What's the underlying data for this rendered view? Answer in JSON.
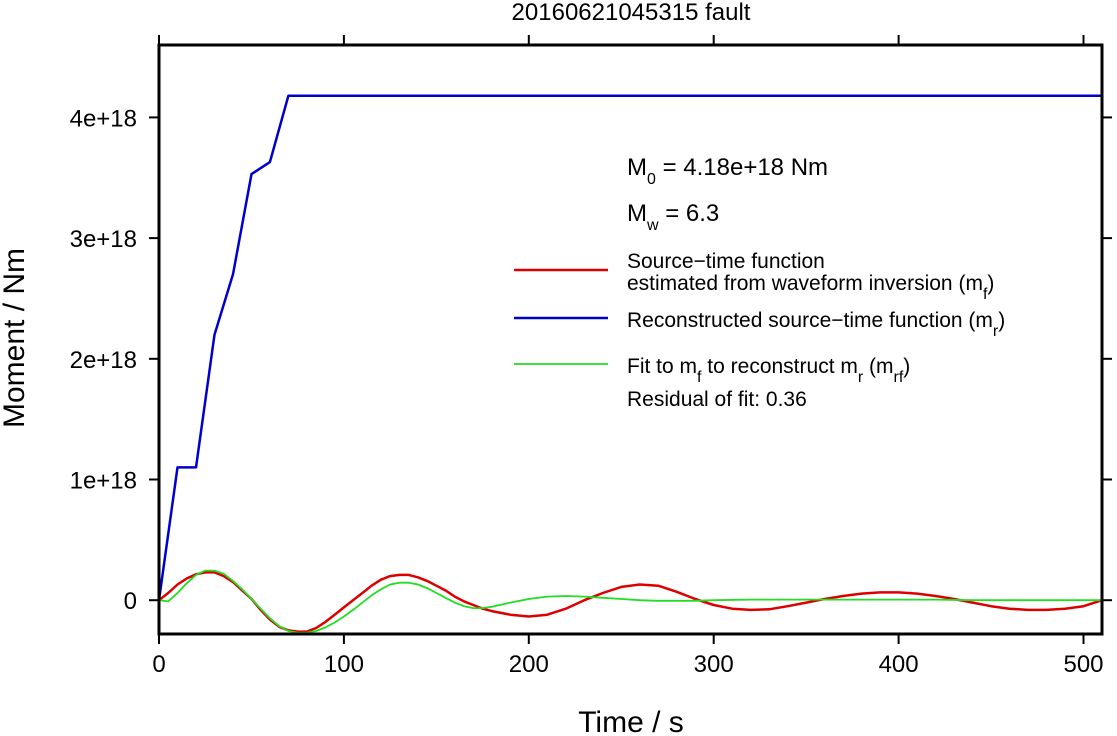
{
  "chart_data": {
    "type": "line",
    "title": "20160621045315 fault",
    "xlabel": "Time / s",
    "ylabel": "Moment / Nm",
    "xlim": [
      0,
      510
    ],
    "ylim": [
      -2.8e+17,
      4.6e+18
    ],
    "x_ticks": [
      {
        "value": 0,
        "label": "0"
      },
      {
        "value": 100,
        "label": "100"
      },
      {
        "value": 200,
        "label": "200"
      },
      {
        "value": 300,
        "label": "300"
      },
      {
        "value": 400,
        "label": "400"
      },
      {
        "value": 500,
        "label": "500"
      }
    ],
    "y_ticks": [
      {
        "value": 0,
        "label": "0"
      },
      {
        "value": 1e+18,
        "label": "1e+18"
      },
      {
        "value": 2e+18,
        "label": "2e+18"
      },
      {
        "value": 3e+18,
        "label": "3e+18"
      },
      {
        "value": 4e+18,
        "label": "4e+18"
      }
    ],
    "grid": false,
    "legend_position": "right",
    "annotations": {
      "m0": {
        "symbol": "M",
        "sub": "0",
        "text": " = 4.18e+18 Nm"
      },
      "mw": {
        "symbol": "M",
        "sub": "w",
        "text": " = 6.3"
      },
      "residual": "Residual of fit: 0.36"
    },
    "legend": [
      {
        "series": "source-time-function",
        "line1": "Source−time function",
        "line2": "estimated from waveform inversion (m",
        "sub": "f",
        "tail": ")"
      },
      {
        "series": "reconstructed",
        "text": "Reconstructed source−time function (m",
        "sub": "r",
        "tail": ")"
      },
      {
        "series": "fit",
        "parts": [
          {
            "t": "Fit to m"
          },
          {
            "sub": "f"
          },
          {
            "t": " to reconstruct m"
          },
          {
            "sub": "r"
          },
          {
            "t": " (m"
          },
          {
            "sub": "rf"
          },
          {
            "t": ")"
          }
        ]
      }
    ],
    "series": [
      {
        "id": "reconstructed",
        "color": "#0000cc",
        "width": 2.5,
        "x": [
          0,
          10,
          20,
          30,
          40,
          50,
          60,
          70,
          510
        ],
        "y": [
          0,
          1.1e+18,
          1.1e+18,
          2.2e+18,
          2.7e+18,
          3.53e+18,
          3.63e+18,
          4.18e+18,
          4.18e+18
        ]
      },
      {
        "id": "source-time-function",
        "color": "#dd0000",
        "width": 2.5,
        "x": [
          0,
          5,
          10,
          15,
          20,
          25,
          30,
          35,
          40,
          45,
          50,
          55,
          60,
          65,
          70,
          75,
          80,
          85,
          90,
          95,
          100,
          105,
          110,
          115,
          120,
          125,
          130,
          135,
          140,
          145,
          150,
          155,
          160,
          165,
          170,
          175,
          180,
          190,
          200,
          210,
          220,
          230,
          240,
          250,
          260,
          270,
          280,
          290,
          300,
          310,
          320,
          330,
          340,
          350,
          360,
          370,
          380,
          390,
          400,
          410,
          420,
          430,
          440,
          450,
          460,
          470,
          480,
          490,
          500,
          510
        ],
        "y": [
          0,
          6e+16,
          1.3e+17,
          1.8e+17,
          2.15e+17,
          2.3e+17,
          2.3e+17,
          2e+17,
          1.5e+17,
          8e+16,
          1e+16,
          -8e+16,
          -1.6e+17,
          -2.2e+17,
          -2.5e+17,
          -2.6e+17,
          -2.6e+17,
          -2.3e+17,
          -1.8e+17,
          -1.2e+17,
          -6e+16,
          0,
          6e+16,
          1.2e+17,
          1.7e+17,
          2e+17,
          2.1e+17,
          2.1e+17,
          1.9e+17,
          1.6e+17,
          1.2e+17,
          8e+16,
          3e+16,
          -1e+16,
          -4e+16,
          -7e+16,
          -9e+16,
          -1.2e+17,
          -1.35e+17,
          -1.2e+17,
          -7e+16,
          0,
          6e+16,
          1.1e+17,
          1.3e+17,
          1.2e+17,
          7e+16,
          1e+16,
          -4e+16,
          -7e+16,
          -8e+16,
          -7.5e+16,
          -5e+16,
          -2e+16,
          1e+16,
          3.5e+16,
          5.5e+16,
          6.5e+16,
          6.5e+16,
          5.5e+16,
          3.5e+16,
          1e+16,
          -2e+16,
          -5e+16,
          -7e+16,
          -8e+16,
          -8e+16,
          -7e+16,
          -5e+16,
          0
        ]
      },
      {
        "id": "fit",
        "color": "#22dd22",
        "width": 1.8,
        "x": [
          0,
          5,
          10,
          15,
          20,
          25,
          30,
          35,
          40,
          45,
          50,
          55,
          60,
          65,
          70,
          75,
          80,
          85,
          90,
          95,
          100,
          105,
          110,
          115,
          120,
          125,
          130,
          135,
          140,
          145,
          150,
          155,
          160,
          165,
          170,
          175,
          180,
          190,
          200,
          210,
          220,
          230,
          240,
          250,
          260,
          270,
          280,
          290,
          300,
          320,
          340,
          360,
          380,
          400,
          420,
          440,
          460,
          480,
          500,
          510
        ],
        "y": [
          0,
          -1e+16,
          6e+16,
          1.4e+17,
          2.1e+17,
          2.45e+17,
          2.45e+17,
          2.2e+17,
          1.6e+17,
          9e+16,
          1e+16,
          -7e+16,
          -1.5e+17,
          -2.15e+17,
          -2.55e+17,
          -2.7e+17,
          -2.7e+17,
          -2.55e+17,
          -2.25e+17,
          -1.85e+17,
          -1.35e+17,
          -8e+16,
          -2e+16,
          4e+16,
          9e+16,
          1.3e+17,
          1.45e+17,
          1.45e+17,
          1.3e+17,
          1e+17,
          6e+16,
          2e+16,
          -2e+16,
          -5e+16,
          -6.5e+16,
          -6.5e+16,
          -5.5e+16,
          -2e+16,
          1e+16,
          3e+16,
          3.5e+16,
          3e+16,
          2e+16,
          1e+16,
          0,
          -5000000000000000.0,
          -5000000000000000.0,
          -5000000000000000.0,
          0,
          5000000000000000.0,
          5000000000000000.0,
          5000000000000000.0,
          5000000000000000.0,
          5000000000000000.0,
          5000000000000000.0,
          0,
          0,
          0,
          0,
          0
        ]
      }
    ]
  }
}
